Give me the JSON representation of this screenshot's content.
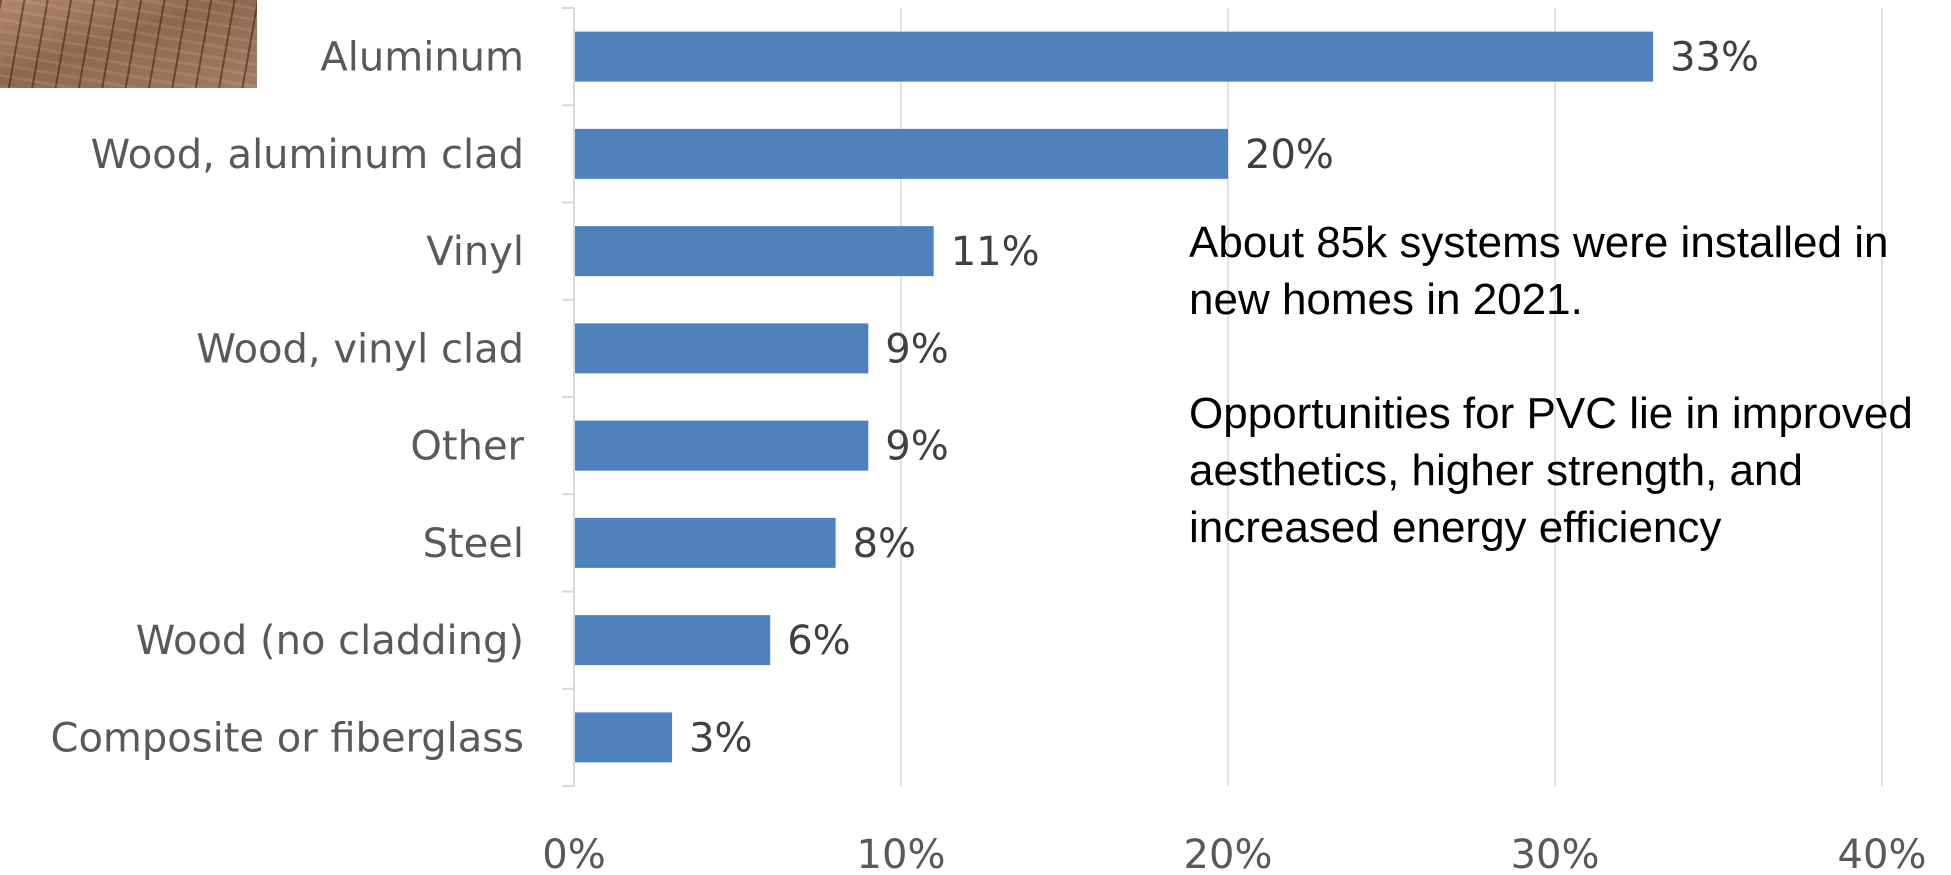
{
  "chart_data": {
    "type": "bar",
    "orientation": "horizontal",
    "categories": [
      "Aluminum",
      "Wood, aluminum clad",
      "Vinyl",
      "Wood, vinyl clad",
      "Other",
      "Steel",
      "Wood (no cladding)",
      "Composite or fiberglass"
    ],
    "values": [
      33,
      20,
      11,
      9,
      9,
      8,
      6,
      3
    ],
    "data_labels": [
      "33%",
      "20%",
      "11%",
      "9%",
      "9%",
      "8%",
      "6%",
      "3%"
    ],
    "x_ticks": [
      "0%",
      "10%",
      "20%",
      "30%",
      "40%"
    ],
    "xlim": [
      0,
      40
    ],
    "unit": "%",
    "grid": "vertical",
    "bar_color": "#4f81bd"
  },
  "annotation": {
    "line1": "About 85k systems were installed in new homes in 2021.",
    "line2": "Opportunities for PVC lie in improved aesthetics, higher strength, and increased energy efficiency"
  }
}
